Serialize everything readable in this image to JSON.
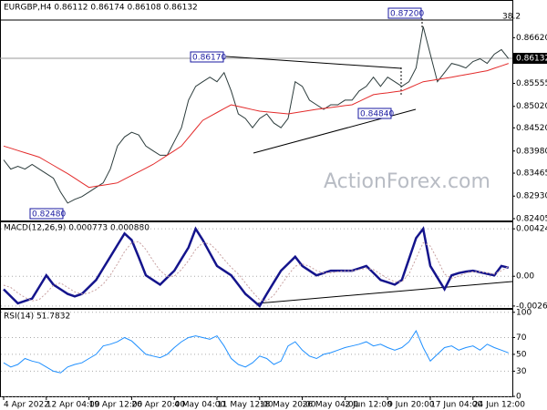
{
  "chart_data": [
    {
      "type": "line",
      "title": "EURGBP,H4  0.86112 0.86174 0.86108 0.86132",
      "watermark": "ActionForex.com",
      "fib_label": "38.2",
      "price_tag": "0.86132",
      "annotations": [
        "0.86170",
        "0.84840",
        "0.87200",
        "0.82480"
      ],
      "ylim": [
        0.82341,
        0.87476
      ],
      "yticks": [
        {
          "value": 0.8662,
          "label": "0.86620"
        },
        0.85555,
        {
          "value": 0.8502,
          "label": "0.85020"
        },
        {
          "value": 0.8452,
          "label": "0.84520"
        },
        {
          "value": 0.8398,
          "label": "0.83980"
        },
        0.83465,
        {
          "value": 0.8293,
          "label": "0.82930"
        },
        0.82405
      ],
      "grid": false,
      "series": [
        {
          "name": "EURGBP",
          "color": "#2b3b3b",
          "line_style": "solid",
          "values": [
            0.83774,
            0.8356,
            0.83624,
            0.8356,
            0.83667,
            0.8356,
            0.83453,
            0.83346,
            0.83025,
            0.82768,
            0.82854,
            0.82918,
            0.83025,
            0.83132,
            0.83239,
            0.8356,
            0.84095,
            0.84309,
            0.84416,
            0.84352,
            0.84095,
            0.83988,
            0.83881,
            0.83881,
            0.84202,
            0.84523,
            0.85165,
            0.85486,
            0.85593,
            0.857,
            0.85593,
            0.85807,
            0.85379,
            0.84844,
            0.84737,
            0.84523,
            0.84737,
            0.84844,
            0.8463,
            0.84523,
            0.84737,
            0.85593,
            0.85486,
            0.85165,
            0.85058,
            0.84951,
            0.85058,
            0.85058,
            0.85165,
            0.85165,
            0.85379,
            0.85486,
            0.857,
            0.85486,
            0.857,
            0.85593,
            0.85486,
            0.85593,
            0.85914,
            0.86877,
            0.86235,
            0.85593,
            0.85807,
            0.86021,
            0.85978,
            0.85914,
            0.86064,
            0.86128,
            0.86021,
            0.86235,
            0.86342,
            0.86132
          ]
        },
        {
          "name": "MA",
          "color": "#e32b2b",
          "line_style": "solid",
          "values": [
            0.84095,
            0.84044,
            0.83992,
            0.83941,
            0.83889,
            0.83838,
            0.83742,
            0.83646,
            0.83549,
            0.83453,
            0.83346,
            0.83239,
            0.83132,
            0.83159,
            0.83186,
            0.83212,
            0.83239,
            0.83325,
            0.8341,
            0.83496,
            0.83581,
            0.83667,
            0.83774,
            0.83881,
            0.83988,
            0.84095,
            0.84295,
            0.84494,
            0.84694,
            0.84785,
            0.84876,
            0.84967,
            0.85058,
            0.8502,
            0.84983,
            0.84945,
            0.84908,
            0.84892,
            0.84876,
            0.8486,
            0.84844,
            0.84871,
            0.84898,
            0.84924,
            0.84951,
            0.84972,
            0.84994,
            0.85015,
            0.85037,
            0.85058,
            0.85136,
            0.85215,
            0.85293,
            0.85315,
            0.85336,
            0.85358,
            0.85379,
            0.8545,
            0.85522,
            0.85593,
            0.8562,
            0.85647,
            0.85673,
            0.857,
            0.8573,
            0.8576,
            0.8579,
            0.8582,
            0.8585,
            0.85907,
            0.85964,
            0.86021
          ]
        }
      ]
    },
    {
      "type": "line",
      "title": "MACD(12,26,9) 0.000773 0.000880",
      "ylim": [
        -0.00292,
        0.00483
      ],
      "yticks": [
        0.004248,
        {
          "value": 0,
          "label": "0.00"
        },
        -0.002667
      ],
      "grid": true,
      "series": [
        {
          "name": "MACD",
          "color": "#14148c",
          "line_style": "solid",
          "values": [
            -0.00117,
            -0.0018,
            -0.00242,
            -0.00221,
            -0.002,
            -0.00096,
            8e-05,
            -0.00075,
            -0.00117,
            -0.00158,
            -0.0018,
            -0.00158,
            -0.00096,
            -0.00033,
            0.00071,
            0.00175,
            0.00279,
            0.00383,
            0.00325,
            0.0017,
            8e-05,
            -0.00033,
            -0.00075,
            -0.00012,
            0.0005,
            0.00154,
            0.00258,
            0.00425,
            0.00325,
            0.00208,
            0.00092,
            0.0005,
            8e-05,
            -0.00075,
            -0.00158,
            -0.00212,
            -0.00267,
            -0.00158,
            -0.00054,
            0.0005,
            0.00112,
            0.00175,
            0.00092,
            0.0005,
            8e-05,
            0.00029,
            0.0005,
            0.0005,
            0.0005,
            0.0005,
            0.00071,
            0.00092,
            0.0003,
            -0.00033,
            -0.00054,
            -0.00075,
            -0.00033,
            0.00154,
            0.00342,
            0.00425,
            0.00092,
            -0.00012,
            -0.00117,
            8e-05,
            0.00029,
            0.00042,
            0.0005,
            0.00036,
            0.00022,
            8e-05,
            0.00092,
            0.00077
          ]
        },
        {
          "name": "Signal",
          "color": "#c8a0a0",
          "line_style": "dotted",
          "values": [
            -0.0008,
            -0.001,
            -0.0015,
            -0.0019,
            -0.0022,
            -0.0021,
            -0.0015,
            -0.0008,
            -0.0006,
            -0.001,
            -0.0014,
            -0.0016,
            -0.0015,
            -0.0012,
            -0.0007,
            0.0001,
            0.0011,
            0.0022,
            0.003,
            0.0031,
            0.0024,
            0.0014,
            0.0005,
            0,
            0,
            0.0006,
            0.0014,
            0.0024,
            0.003,
            0.0029,
            0.0023,
            0.0015,
            0.0008,
            0.0002,
            -0.0006,
            -0.0014,
            -0.0021,
            -0.0022,
            -0.0017,
            -0.0008,
            0.0001,
            0.0009,
            0.0011,
            0.0009,
            0.0005,
            0.0003,
            0.0003,
            0.0004,
            0.0005,
            0.0005,
            0.0006,
            0.0007,
            0.0006,
            0.0002,
            -0.0002,
            -0.0005,
            -0.0005,
            0.0002,
            0.0016,
            0.003,
            0.0027,
            0.0015,
            0.0002,
            -0.0002,
            0,
            0.0003,
            0.0004,
            0.0004,
            0.0003,
            0.0002,
            0.0005,
            0.00088
          ]
        }
      ]
    },
    {
      "type": "line",
      "title": "RSI(14) 51.7832",
      "ylim": [
        -1,
        103
      ],
      "yticks": [
        100,
        70,
        50,
        30,
        0
      ],
      "grid": true,
      "categories": [
        "4 Apr 2022",
        null,
        null,
        null,
        null,
        null,
        "12 Apr 04:00",
        null,
        null,
        null,
        null,
        null,
        "19 Apr 12:00",
        null,
        null,
        null,
        null,
        null,
        "26 Apr 20:00",
        null,
        null,
        null,
        null,
        null,
        "4 May 04:00",
        null,
        null,
        null,
        null,
        null,
        "11 May 12:00",
        null,
        null,
        null,
        null,
        null,
        "18 May 20:00",
        null,
        null,
        null,
        null,
        null,
        "26 May 04:00",
        null,
        null,
        null,
        null,
        null,
        "2 Jun 12:00",
        null,
        null,
        null,
        null,
        null,
        "9 Jun 20:00",
        null,
        null,
        null,
        null,
        null,
        "17 Jun 04:00",
        null,
        null,
        null,
        null,
        null,
        "24 Jun 12:00",
        null,
        null,
        null,
        null,
        null
      ],
      "series": [
        {
          "name": "RSI",
          "color": "#1e8fff",
          "line_style": "solid",
          "values": [
            40,
            35,
            38,
            45,
            42,
            40,
            35,
            30,
            28,
            35,
            38,
            40,
            45,
            50,
            60,
            62,
            65,
            70,
            66,
            58,
            50,
            48,
            46,
            50,
            58,
            65,
            70,
            72,
            70,
            68,
            72,
            60,
            45,
            38,
            35,
            40,
            48,
            45,
            38,
            42,
            60,
            65,
            55,
            48,
            45,
            50,
            52,
            55,
            58,
            60,
            62,
            65,
            60,
            62,
            58,
            55,
            58,
            65,
            78,
            58,
            42,
            50,
            58,
            60,
            55,
            58,
            60,
            55,
            62,
            58,
            55,
            51.78
          ]
        }
      ]
    }
  ]
}
